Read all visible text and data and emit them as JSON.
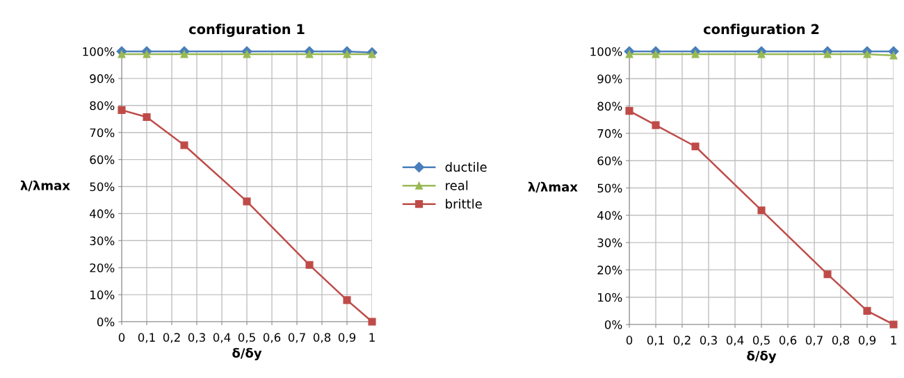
{
  "chart_data": [
    {
      "type": "line",
      "title": "configuration 1",
      "xlabel": "δ/δy",
      "ylabel": "λ/λmax",
      "x": [
        0,
        0.1,
        0.25,
        0.5,
        0.75,
        0.9,
        1
      ],
      "series": [
        {
          "name": "ductile",
          "color": "#4a7ebb",
          "marker": "diamond",
          "values": [
            100,
            100,
            100,
            100,
            100,
            100,
            99.6
          ]
        },
        {
          "name": "real",
          "color": "#98b954",
          "marker": "triangle",
          "values": [
            99,
            99,
            99,
            99,
            99,
            99,
            99
          ]
        },
        {
          "name": "brittle",
          "color": "#be4b48",
          "marker": "square",
          "values": [
            78.3,
            75.7,
            65.3,
            44.5,
            21,
            8,
            0
          ]
        }
      ],
      "xlim": [
        0,
        1
      ],
      "xticks": [
        0,
        {
          "value": 0.1,
          "label": "0,1"
        },
        {
          "value": 0.2,
          "label": "0,2"
        },
        {
          "value": 0.3,
          "label": "0,3"
        },
        {
          "value": 0.4,
          "label": "0,4"
        },
        {
          "value": 0.5,
          "label": "0,5"
        },
        {
          "value": 0.6,
          "label": "0,6"
        },
        {
          "value": 0.7,
          "label": "0,7"
        },
        {
          "value": 0.8,
          "label": "0,8"
        },
        {
          "value": 0.9,
          "label": "0,9"
        },
        1
      ],
      "ylim": [
        0,
        100
      ],
      "yticks": [
        {
          "value": 0,
          "label": "0%"
        },
        {
          "value": 10,
          "label": "10%"
        },
        {
          "value": 20,
          "label": "20%"
        },
        {
          "value": 30,
          "label": "30%"
        },
        {
          "value": 40,
          "label": "40%"
        },
        {
          "value": 50,
          "label": "50%"
        },
        {
          "value": 60,
          "label": "60%"
        },
        {
          "value": 70,
          "label": "70%"
        },
        {
          "value": 80,
          "label": "80%"
        },
        {
          "value": 90,
          "label": "90%"
        },
        {
          "value": 100,
          "label": "100%"
        }
      ],
      "grid": true,
      "legend": "right"
    },
    {
      "type": "line",
      "title": "configuration 2",
      "xlabel": "δ/δy",
      "ylabel": "λ/λmax",
      "x": [
        0,
        0.1,
        0.25,
        0.5,
        0.75,
        0.9,
        1
      ],
      "series": [
        {
          "color": "#4a7ebb",
          "marker": "diamond",
          "values": [
            100,
            100,
            100,
            100,
            100,
            100,
            100
          ]
        },
        {
          "color": "#98b954",
          "marker": "triangle",
          "values": [
            99,
            99,
            99,
            99,
            99,
            99,
            98.5
          ]
        },
        {
          "color": "#be4b48",
          "marker": "square",
          "values": [
            78.2,
            73,
            65.2,
            41.8,
            18.4,
            5,
            0
          ]
        }
      ],
      "xlim": [
        0,
        1
      ],
      "xticks": [
        0,
        {
          "value": 0.1,
          "label": "0,1"
        },
        {
          "value": 0.2,
          "label": "0,2"
        },
        {
          "value": 0.3,
          "label": "0,3"
        },
        {
          "value": 0.4,
          "label": "0,4"
        },
        {
          "value": 0.5,
          "label": "0,5"
        },
        {
          "value": 0.6,
          "label": "0,6"
        },
        {
          "value": 0.7,
          "label": "0,7"
        },
        {
          "value": 0.8,
          "label": "0,8"
        },
        {
          "value": 0.9,
          "label": "0,9"
        },
        1
      ],
      "ylim": [
        0,
        100
      ],
      "yticks": [
        {
          "value": 0,
          "label": "0%"
        },
        {
          "value": 10,
          "label": "10%"
        },
        {
          "value": 20,
          "label": "20%"
        },
        {
          "value": 30,
          "label": "30%"
        },
        {
          "value": 40,
          "label": "40%"
        },
        {
          "value": 50,
          "label": "50%"
        },
        {
          "value": 60,
          "label": "60%"
        },
        {
          "value": 70,
          "label": "70%"
        },
        {
          "value": 80,
          "label": "80%"
        },
        {
          "value": 90,
          "label": "90%"
        },
        {
          "value": 100,
          "label": "100%"
        }
      ],
      "grid": true,
      "legend": false
    }
  ]
}
